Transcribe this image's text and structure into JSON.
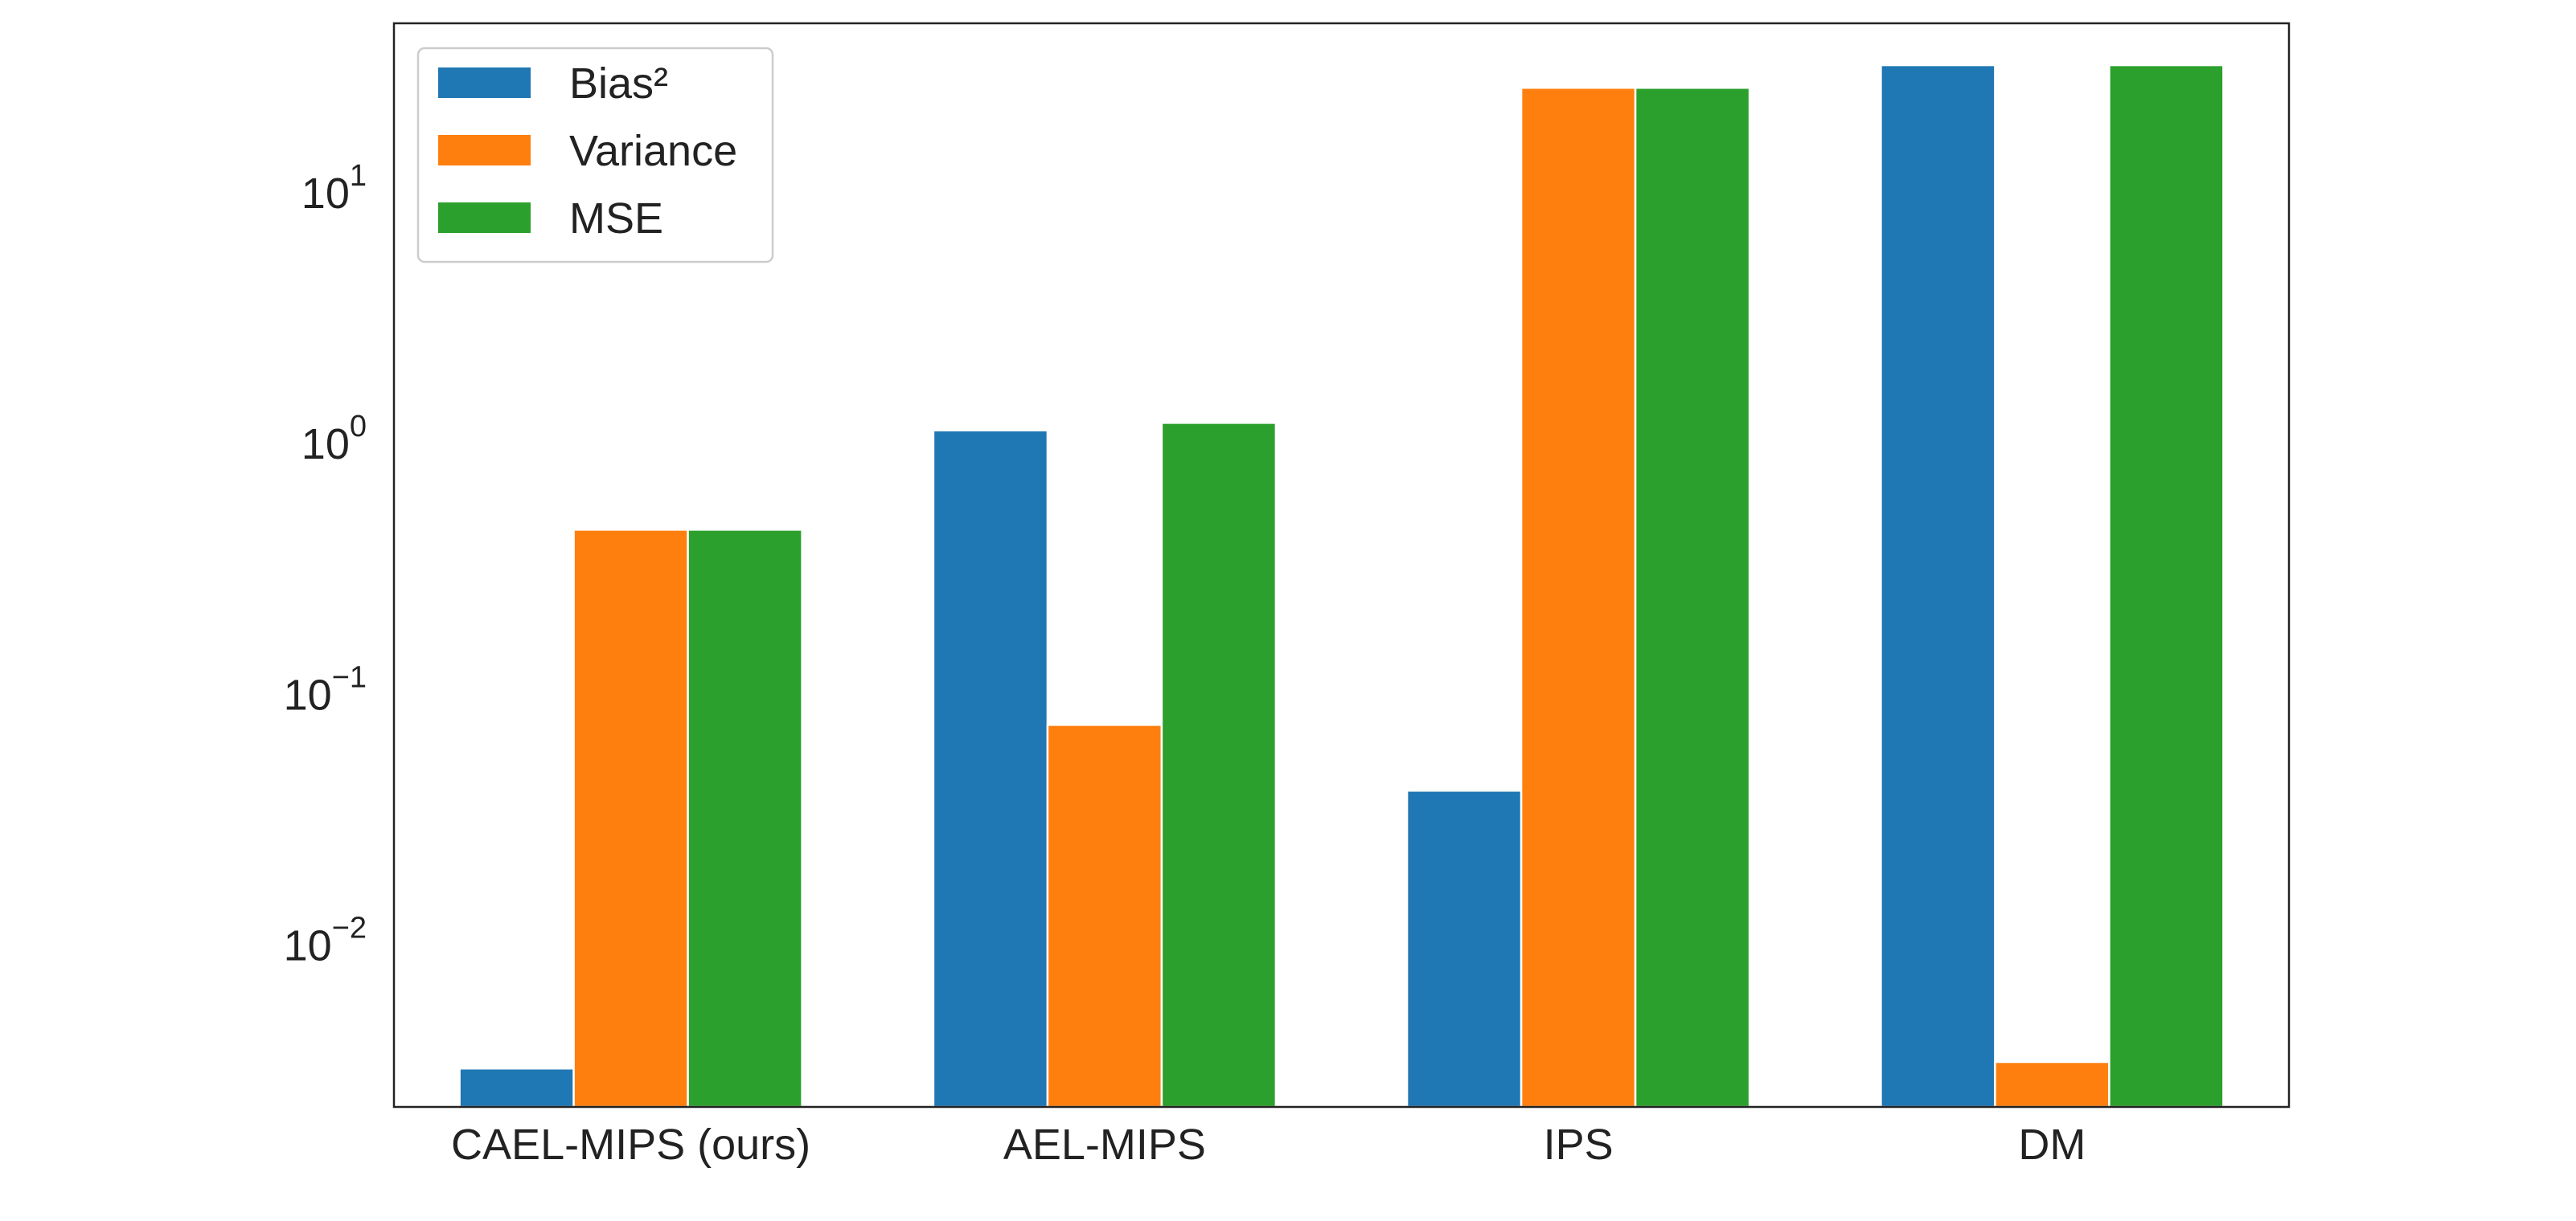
{
  "chart_data": {
    "type": "bar",
    "title": "",
    "xlabel": "",
    "ylabel": "",
    "yscale": "log",
    "ylim": [
      0.00225,
      47
    ],
    "categories": [
      "CAEL-MIPS (ours)",
      "AEL-MIPS",
      "IPS",
      "DM"
    ],
    "series": [
      {
        "name": "Bias²",
        "color": "#1f77b4",
        "values": [
          0.0032,
          1.12,
          0.041,
          32
        ]
      },
      {
        "name": "Variance",
        "color": "#ff7f0e",
        "values": [
          0.45,
          0.075,
          26,
          0.0034
        ]
      },
      {
        "name": "MSE",
        "color": "#2ca02c",
        "values": [
          0.45,
          1.2,
          26,
          32
        ]
      }
    ],
    "y_ticks": [
      {
        "value": 0.01,
        "base": "10",
        "exp": "−2"
      },
      {
        "value": 0.1,
        "base": "10",
        "exp": "−1"
      },
      {
        "value": 1,
        "base": "10",
        "exp": "0"
      },
      {
        "value": 10,
        "base": "10",
        "exp": "1"
      }
    ],
    "grid": false,
    "legend_position": "top-left"
  }
}
